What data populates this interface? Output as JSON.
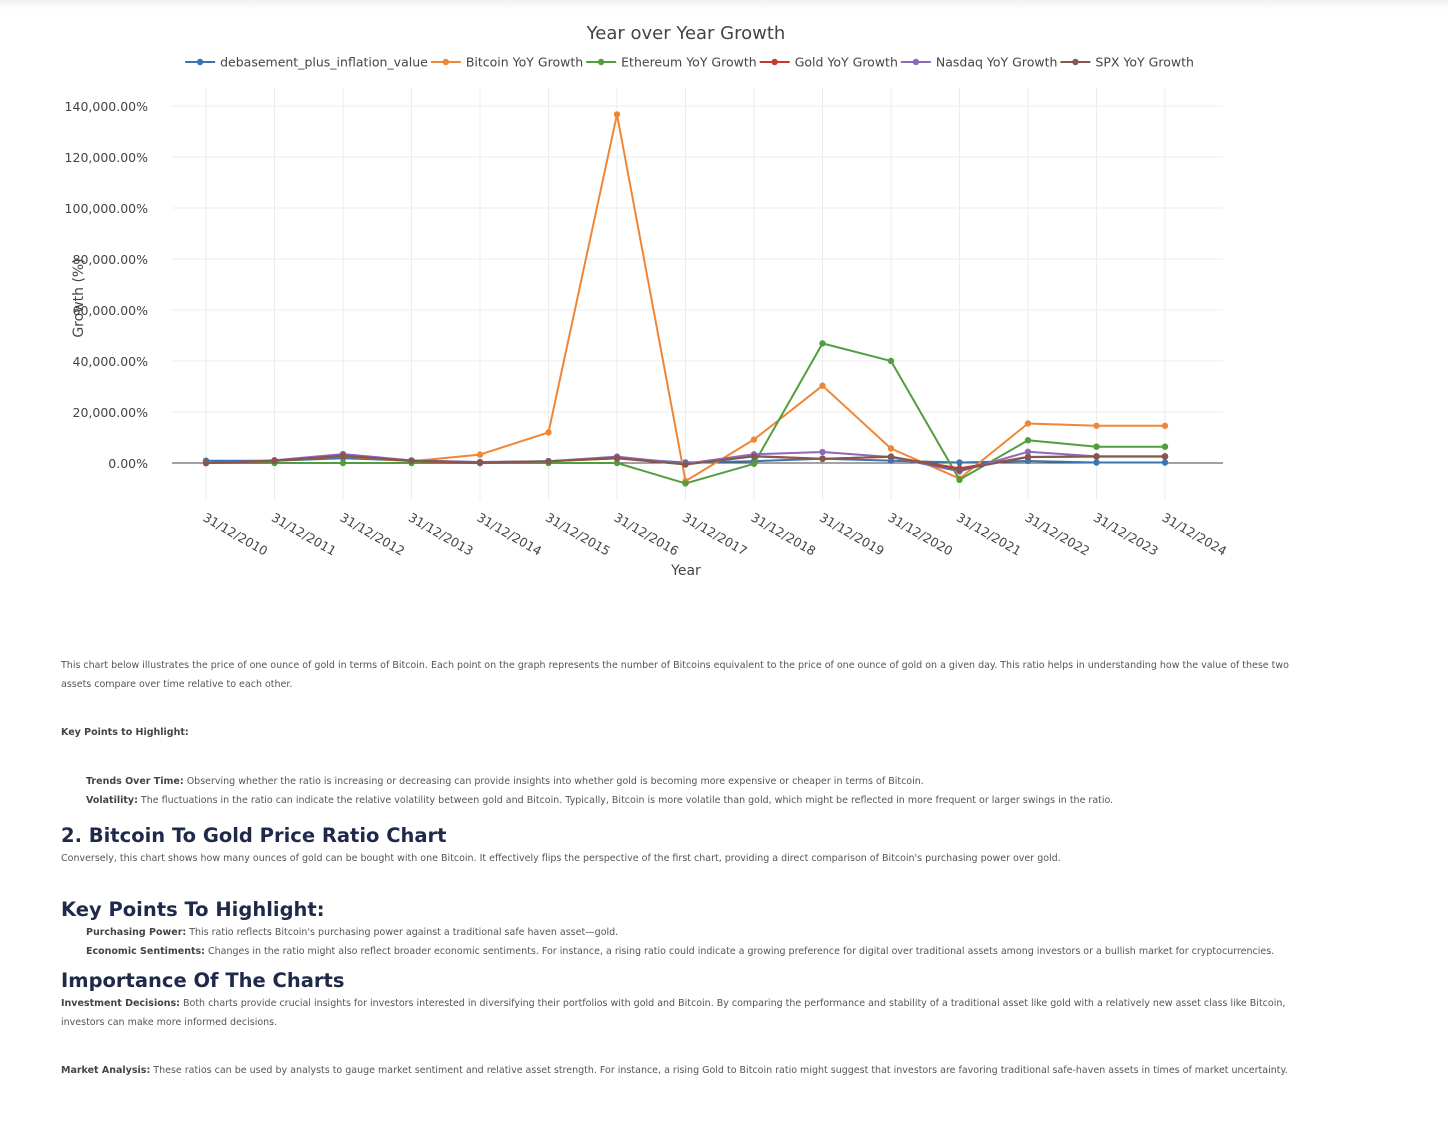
{
  "chart_data": {
    "type": "line",
    "title": "Year over Year Growth",
    "xlabel": "Year",
    "ylabel": "Growth (%)",
    "ylim": [
      -10000,
      140000
    ],
    "y_ticks": [
      0,
      20000,
      40000,
      60000,
      80000,
      100000,
      120000,
      140000
    ],
    "y_tick_labels": [
      "0.00%",
      "20,000.00%",
      "40,000.00%",
      "60,000.00%",
      "80,000.00%",
      "100,000.00%",
      "120,000.00%",
      "140,000.00%"
    ],
    "categories": [
      "31/12/2010",
      "31/12/2011",
      "31/12/2012",
      "31/12/2013",
      "31/12/2014",
      "31/12/2015",
      "31/12/2016",
      "31/12/2017",
      "31/12/2018",
      "31/12/2019",
      "31/12/2020",
      "31/12/2021",
      "31/12/2022",
      "31/12/2023",
      "31/12/2024"
    ],
    "grid": true,
    "legend_position": "top",
    "series": [
      {
        "name": "debasement_plus_inflation_value",
        "color": "#3b75af",
        "values": [
          900,
          900,
          1900,
          900,
          300,
          700,
          1900,
          200,
          700,
          1700,
          900,
          200,
          800,
          200,
          200
        ]
      },
      {
        "name": "Bitcoin YoY Growth",
        "color": "#ef8636",
        "values": [
          0,
          900,
          2600,
          700,
          3300,
          12000,
          136700,
          -7100,
          9200,
          30300,
          5700,
          -6100,
          15500,
          14600,
          14600
        ]
      },
      {
        "name": "Ethereum YoY Growth",
        "color": "#519e3e",
        "values": [
          0,
          0,
          0,
          0,
          0,
          0,
          0,
          -8000,
          -300,
          46900,
          40000,
          -6600,
          8900,
          6400,
          6400
        ]
      },
      {
        "name": "Gold YoY Growth",
        "color": "#c53a32",
        "values": [
          0,
          800,
          2700,
          800,
          0,
          700,
          1800,
          -500,
          2700,
          1700,
          2400,
          -2100,
          2400,
          2600,
          2600
        ]
      },
      {
        "name": "Nasdaq YoY Growth",
        "color": "#8d69b8",
        "values": [
          0,
          1100,
          3500,
          1000,
          400,
          700,
          2500,
          -300,
          3400,
          4300,
          2300,
          -3300,
          4400,
          2600,
          2600
        ]
      },
      {
        "name": "SPX YoY Growth",
        "color": "#84584e",
        "values": [
          0,
          900,
          2900,
          900,
          200,
          700,
          2000,
          -600,
          2600,
          1600,
          2500,
          -2700,
          2300,
          2500,
          2500
        ]
      }
    ]
  },
  "article": {
    "intro": "This chart below illustrates the price of one ounce of gold in terms of Bitcoin. Each point on the graph represents the number of Bitcoins equivalent to the price of one ounce of gold on a given day. This ratio helps in understanding how the value of these two assets compare over time relative to each other.",
    "key_points_label": "Key Points to Highlight:",
    "trends_label": "Trends Over Time:",
    "trends_text": " Observing whether the ratio is increasing or decreasing can provide insights into whether gold is becoming more expensive or cheaper in terms of Bitcoin.",
    "volatility_label": "Volatility:",
    "volatility_text": " The fluctuations in the ratio can indicate the relative volatility between gold and Bitcoin. Typically, Bitcoin is more volatile than gold, which might be reflected in more frequent or larger swings in the ratio.",
    "heading_ratio": "2. Bitcoin To Gold Price Ratio Chart",
    "ratio_text": "Conversely, this chart shows how many ounces of gold can be bought with one Bitcoin. It effectively flips the perspective of the first chart, providing a direct comparison of Bitcoin's purchasing power over gold.",
    "heading_key_points": "Key Points To Highlight:",
    "purchasing_label": "Purchasing Power:",
    "purchasing_text": " This ratio reflects Bitcoin's purchasing power against a traditional safe haven asset—gold.",
    "economic_label": "Economic Sentiments:",
    "economic_text": " Changes in the ratio might also reflect broader economic sentiments. For instance, a rising ratio could indicate a growing preference for digital over traditional assets among investors or a bullish market for cryptocurrencies.",
    "heading_importance": "Importance Of The Charts",
    "investment_label": "Investment Decisions:",
    "investment_text": " Both charts provide crucial insights for investors interested in diversifying their portfolios with gold and Bitcoin. By comparing the performance and stability of a traditional asset like gold with a relatively new asset class like Bitcoin, investors can make more informed decisions.",
    "market_label": "Market Analysis:",
    "market_text": " These ratios can be used by analysts to gauge market sentiment and relative asset strength. For instance, a rising Gold to Bitcoin ratio might suggest that investors are favoring traditional safe-haven assets in times of market uncertainty."
  }
}
